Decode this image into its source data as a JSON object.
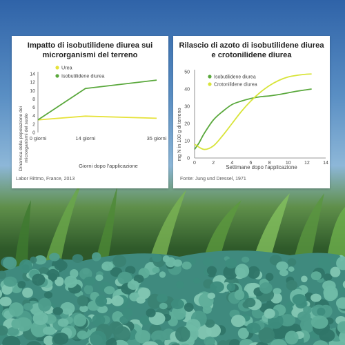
{
  "colors": {
    "urea": "#e6e23a",
    "isobutylidene": "#5aa83c",
    "crotonylidene": "#d8e43a",
    "axis": "#777777"
  },
  "chart_data": [
    {
      "type": "line",
      "title": "Impatto di isobutilidene diurea sui microrganismi del terreno",
      "xlabel": "Giorni dopo l'applicazione",
      "ylabel": "Dinamica della popolazione dei microrganismi del suolo",
      "categories": [
        "0 giorni",
        "14 giorni",
        "35 giorni"
      ],
      "x": [
        0,
        14,
        35
      ],
      "xlim": [
        0,
        35
      ],
      "ylim": [
        0,
        14
      ],
      "yticks": [
        0,
        2,
        4,
        6,
        8,
        10,
        12,
        14
      ],
      "legend_position": "top-left",
      "series": [
        {
          "name": "Urea",
          "color": "#e6e23a",
          "values": [
            3.0,
            3.9,
            3.4
          ]
        },
        {
          "name": "Isobutilidene diurea",
          "color": "#5aa83c",
          "values": [
            3.0,
            10.5,
            12.5
          ]
        }
      ],
      "source": "Labor Rittmo, France, 2013"
    },
    {
      "type": "line",
      "title": "Rilascio di azoto di isobutilidene diurea e crotonilidene diurea",
      "xlabel": "Settimane dopo l'applicazione",
      "ylabel": "mg N in 100 g di terreno",
      "xlim": [
        0,
        14
      ],
      "ylim": [
        0,
        50
      ],
      "xticks": [
        0,
        2,
        4,
        6,
        8,
        10,
        12,
        14
      ],
      "yticks": [
        0,
        10,
        20,
        30,
        40,
        50
      ],
      "legend_position": "top-left",
      "series": [
        {
          "name": "Isobutilidene diurea",
          "color": "#5aa83c",
          "x": [
            0,
            0.5,
            1,
            2,
            3,
            4,
            5,
            6,
            7,
            8,
            9,
            10,
            11,
            12,
            12.5
          ],
          "values": [
            5,
            9,
            14,
            22,
            27,
            31,
            33,
            34.5,
            35.5,
            36,
            36.8,
            37.8,
            38.8,
            39.6,
            40
          ]
        },
        {
          "name": "Crotonilidene diurea",
          "color": "#d8e43a",
          "x": [
            0,
            1,
            2,
            3,
            4,
            5,
            6,
            7,
            8,
            9,
            10,
            11,
            12,
            12.5
          ],
          "values": [
            8,
            5,
            7,
            13,
            20,
            27,
            33,
            38,
            42,
            45,
            47,
            48,
            48.6,
            48.7
          ]
        }
      ],
      "source": "Fonte: Jung und Dressel, 1971"
    }
  ]
}
